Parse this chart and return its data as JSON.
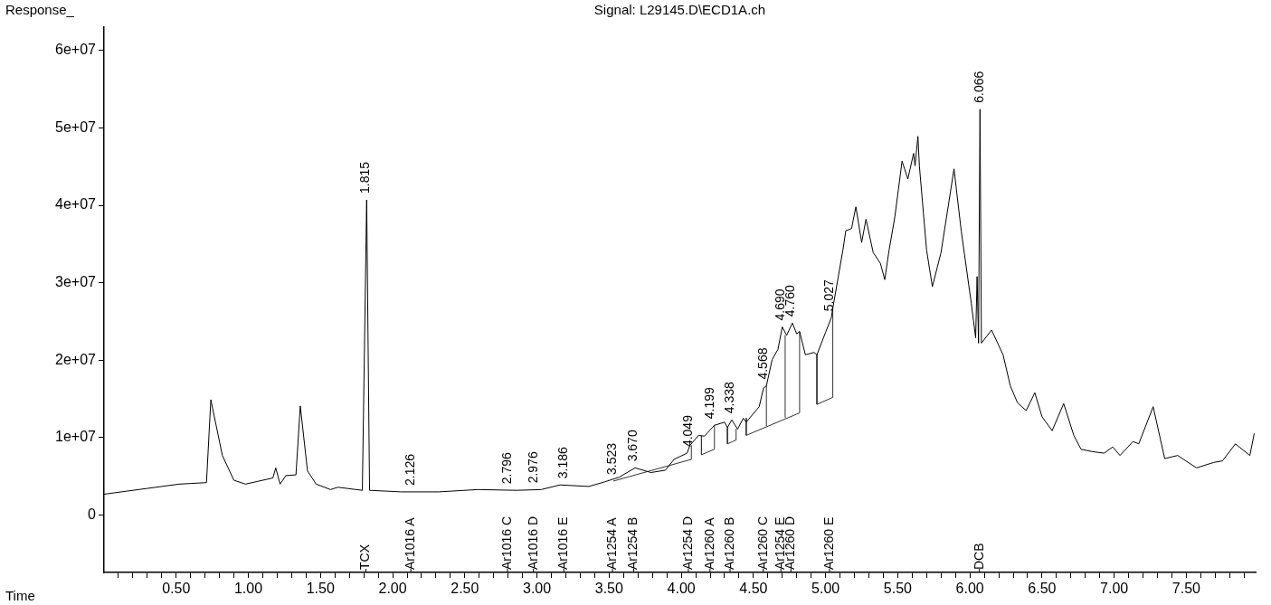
{
  "chart_data": {
    "type": "line",
    "title": "Signal: L29145.D\\ECD1A.ch",
    "xlabel": "Time",
    "ylabel": "Response_",
    "xlim": [
      0,
      7.98
    ],
    "ylim": [
      -7400000,
      63000000
    ],
    "xticks": [
      {
        "value": 0.1,
        "label": null
      },
      {
        "value": 0.2,
        "label": null
      },
      {
        "value": 0.3,
        "label": null
      },
      {
        "value": 0.4,
        "label": null
      },
      {
        "value": 0.5,
        "label": "0.50"
      },
      {
        "value": 0.6,
        "label": null
      },
      {
        "value": 0.7,
        "label": null
      },
      {
        "value": 0.8,
        "label": null
      },
      {
        "value": 0.9,
        "label": null
      },
      {
        "value": 1,
        "label": "1.00"
      },
      {
        "value": 1.1,
        "label": null
      },
      {
        "value": 1.2,
        "label": null
      },
      {
        "value": 1.3,
        "label": null
      },
      {
        "value": 1.4,
        "label": null
      },
      {
        "value": 1.5,
        "label": "1.50"
      },
      {
        "value": 1.6,
        "label": null
      },
      {
        "value": 1.7,
        "label": null
      },
      {
        "value": 1.8,
        "label": null
      },
      {
        "value": 1.9,
        "label": null
      },
      {
        "value": 2,
        "label": "2.00"
      },
      {
        "value": 2.1,
        "label": null
      },
      {
        "value": 2.2,
        "label": null
      },
      {
        "value": 2.3,
        "label": null
      },
      {
        "value": 2.4,
        "label": null
      },
      {
        "value": 2.5,
        "label": "2.50"
      },
      {
        "value": 2.6,
        "label": null
      },
      {
        "value": 2.7,
        "label": null
      },
      {
        "value": 2.8,
        "label": null
      },
      {
        "value": 2.9,
        "label": null
      },
      {
        "value": 3,
        "label": "3.00"
      },
      {
        "value": 3.1,
        "label": null
      },
      {
        "value": 3.2,
        "label": null
      },
      {
        "value": 3.3,
        "label": null
      },
      {
        "value": 3.4,
        "label": null
      },
      {
        "value": 3.5,
        "label": "3.50"
      },
      {
        "value": 3.6,
        "label": null
      },
      {
        "value": 3.7,
        "label": null
      },
      {
        "value": 3.8,
        "label": null
      },
      {
        "value": 3.9,
        "label": null
      },
      {
        "value": 4,
        "label": "4.00"
      },
      {
        "value": 4.1,
        "label": null
      },
      {
        "value": 4.2,
        "label": null
      },
      {
        "value": 4.3,
        "label": null
      },
      {
        "value": 4.4,
        "label": null
      },
      {
        "value": 4.5,
        "label": "4.50"
      },
      {
        "value": 4.6,
        "label": null
      },
      {
        "value": 4.7,
        "label": null
      },
      {
        "value": 4.8,
        "label": null
      },
      {
        "value": 4.9,
        "label": null
      },
      {
        "value": 5,
        "label": "5.00"
      },
      {
        "value": 5.1,
        "label": null
      },
      {
        "value": 5.2,
        "label": null
      },
      {
        "value": 5.3,
        "label": null
      },
      {
        "value": 5.4,
        "label": null
      },
      {
        "value": 5.5,
        "label": "5.50"
      },
      {
        "value": 5.6,
        "label": null
      },
      {
        "value": 5.7,
        "label": null
      },
      {
        "value": 5.8,
        "label": null
      },
      {
        "value": 5.9,
        "label": null
      },
      {
        "value": 6,
        "label": "6.00"
      },
      {
        "value": 6.1,
        "label": null
      },
      {
        "value": 6.2,
        "label": null
      },
      {
        "value": 6.3,
        "label": null
      },
      {
        "value": 6.4,
        "label": null
      },
      {
        "value": 6.5,
        "label": "6.50"
      },
      {
        "value": 6.6,
        "label": null
      },
      {
        "value": 6.7,
        "label": null
      },
      {
        "value": 6.8,
        "label": null
      },
      {
        "value": 6.9,
        "label": null
      },
      {
        "value": 7,
        "label": "7.00"
      },
      {
        "value": 7.1,
        "label": null
      },
      {
        "value": 7.2,
        "label": null
      },
      {
        "value": 7.3,
        "label": null
      },
      {
        "value": 7.4,
        "label": null
      },
      {
        "value": 7.5,
        "label": "7.50"
      },
      {
        "value": 7.6,
        "label": null
      },
      {
        "value": 7.7,
        "label": null
      },
      {
        "value": 7.8,
        "label": null
      },
      {
        "value": 7.9,
        "label": null
      }
    ],
    "yticks": [
      0,
      {
        "value": 10000000,
        "label": "1e+07"
      },
      {
        "value": 20000000,
        "label": "2e+07"
      },
      {
        "value": 30000000,
        "label": "3e+07"
      },
      {
        "value": 40000000,
        "label": "4e+07"
      },
      {
        "value": 50000000,
        "label": "5e+07"
      },
      {
        "value": 60000000,
        "label": "6e+07"
      }
    ],
    "grid": false,
    "legend": false,
    "marker": "none",
    "line_style": "solid",
    "series": [
      {
        "color": "#000000",
        "x": [
          0,
          0.52,
          0.71,
          0.74,
          0.82,
          0.9,
          0.98,
          1.17,
          1.19,
          1.22,
          1.26,
          1.33,
          1.36,
          1.41,
          1.47,
          1.57,
          1.62,
          1.79,
          1.82,
          1.84,
          2.06,
          2.32,
          2.59,
          2.86,
          3.03,
          3.16,
          3.36,
          3.47,
          3.57,
          3.68,
          3.79,
          3.89,
          3.95,
          4.04,
          4.06,
          4.12,
          4.16,
          4.23,
          4.3,
          4.32,
          4.35,
          4.39,
          4.43,
          4.45,
          4.54,
          4.57,
          4.59,
          4.63,
          4.67,
          4.7,
          4.73,
          4.77,
          4.8,
          4.82,
          4.86,
          4.92,
          4.94,
          5,
          5.04,
          5.05,
          5.12,
          5.14,
          5.18,
          5.21,
          5.25,
          5.28,
          5.33,
          5.38,
          5.41,
          5.44,
          5.48,
          5.53,
          5.57,
          5.61,
          5.62,
          5.64,
          5.65,
          5.7,
          5.74,
          5.8,
          5.89,
          5.94,
          6.01,
          6.04,
          6.05,
          6.06,
          6.07,
          6.08,
          6.15,
          6.23,
          6.28,
          6.33,
          6.39,
          6.45,
          6.5,
          6.57,
          6.65,
          6.72,
          6.77,
          6.85,
          6.93,
          6.99,
          7.04,
          7.13,
          7.17,
          7.27,
          7.35,
          7.44,
          7.57,
          7.69,
          7.75,
          7.84,
          7.94,
          7.97
        ],
        "values": [
          2700000,
          4000000,
          4200000,
          14900000,
          7700000,
          4500000,
          4000000,
          4800000,
          6100000,
          4000000,
          5100000,
          5200000,
          14100000,
          5700000,
          4000000,
          3300000,
          3600000,
          3200000,
          40700000,
          3200000,
          3000000,
          3000000,
          3300000,
          3200000,
          3300000,
          3900000,
          3700000,
          4300000,
          4900000,
          6100000,
          5500000,
          5800000,
          7200000,
          8000000,
          9000000,
          10300000,
          10200000,
          11600000,
          12000000,
          11300000,
          12300000,
          11100000,
          12500000,
          12000000,
          14000000,
          16400000,
          16700000,
          20100000,
          21400000,
          24300000,
          23200000,
          24800000,
          23400000,
          23700000,
          20700000,
          21000000,
          20700000,
          23600000,
          25500000,
          26700000,
          34200000,
          36700000,
          37000000,
          39800000,
          35200000,
          38200000,
          33900000,
          32500000,
          30400000,
          34200000,
          38500000,
          45700000,
          43400000,
          46700000,
          45100000,
          48900000,
          45100000,
          34200000,
          29500000,
          33900000,
          44700000,
          36700000,
          27300000,
          22900000,
          30800000,
          22200000,
          52400000,
          22200000,
          23900000,
          20700000,
          16700000,
          14500000,
          13500000,
          15800000,
          12700000,
          10900000,
          14400000,
          10300000,
          8500000,
          8200000,
          8000000,
          8800000,
          7700000,
          9500000,
          9200000,
          14000000,
          7300000,
          7700000,
          6100000,
          6800000,
          7000000,
          9200000,
          7700000,
          10500000
        ]
      },
      {
        "color": "#333333",
        "x": [
          3.53,
          4.07,
          4.07,
          null,
          4.14,
          4.14,
          4.23,
          4.23,
          null,
          4.32,
          4.32,
          4.38,
          4.38,
          null,
          4.45,
          4.45,
          4.82,
          4.82,
          null,
          4.59,
          4.59,
          null,
          4.72,
          4.72,
          null,
          4.94,
          4.94,
          5.05,
          5.05
        ],
        "values": [
          4400000,
          7200000,
          9000000,
          null,
          10200000,
          7800000,
          8500000,
          11600000,
          null,
          11300000,
          9200000,
          9700000,
          11100000,
          null,
          12500000,
          10300000,
          13200000,
          23700000,
          null,
          11500000,
          16700000,
          null,
          12600000,
          23200000,
          null,
          20700000,
          14300000,
          15200000,
          26700000
        ]
      }
    ],
    "annotations": [
      {
        "text": "1.815",
        "x": 1.815,
        "y": 40700000
      },
      {
        "text": "2.126",
        "x": 2.126,
        "y": 3000000
      },
      {
        "text": "2.796",
        "x": 2.796,
        "y": 3200000
      },
      {
        "text": "2.976",
        "x": 2.976,
        "y": 3300000
      },
      {
        "text": "3.186",
        "x": 3.186,
        "y": 3900000
      },
      {
        "text": "3.523",
        "x": 3.523,
        "y": 4400000
      },
      {
        "text": "3.670",
        "x": 3.67,
        "y": 6100000
      },
      {
        "text": "4.049",
        "x": 4.049,
        "y": 8000000
      },
      {
        "text": "4.199",
        "x": 4.199,
        "y": 11600000
      },
      {
        "text": "4.338",
        "x": 4.338,
        "y": 12300000
      },
      {
        "text": "4.568",
        "x": 4.568,
        "y": 16700000
      },
      {
        "text": "4.690",
        "x": 4.69,
        "y": 24300000
      },
      {
        "text": "4.760",
        "x": 4.76,
        "y": 24800000
      },
      {
        "text": "5.027",
        "x": 5.027,
        "y": 25500000
      },
      {
        "text": "6.066",
        "x": 6.066,
        "y": 52400000
      },
      "TCX",
      "Ar1016 A",
      "Ar1016 C",
      "Ar1016 D",
      "Ar1016 E",
      "Ar1254 A",
      "Ar1254 B",
      "Ar1254 D",
      "Ar1260 A",
      "Ar1260 B",
      "Ar1260 C",
      "Ar1254 E",
      "Ar1260 D",
      "Ar1260 E",
      "DCB"
    ]
  }
}
